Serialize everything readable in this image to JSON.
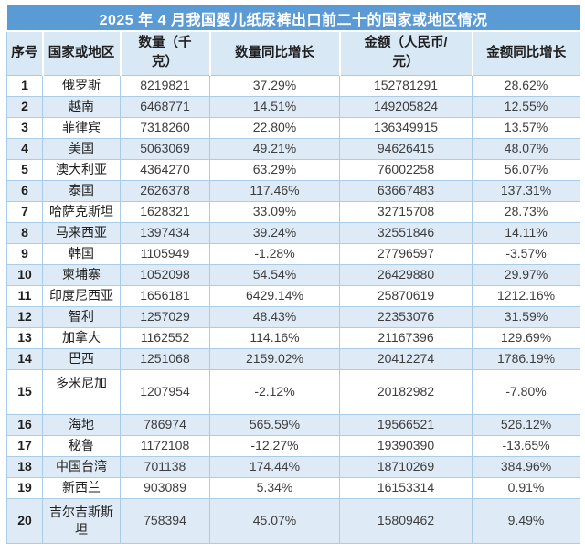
{
  "title": "2025 年 4 月我国婴儿纸尿裤出口前二十的国家或地区情况",
  "columns": {
    "index": "序号",
    "country": "国家或地区",
    "quantity": "数量（千\n克）",
    "quantity_yoy": "数量同比增长",
    "amount": "金额（人民币/\n元）",
    "amount_yoy": "金额同比增长"
  },
  "colors": {
    "title_bg": "#5B9BD5",
    "header_bg": "#D9E8F5",
    "band_bg": "#DEEBF6",
    "border_c": "#A9CCE9",
    "title_text": "#FFFFFF"
  },
  "rows": [
    {
      "index": "1",
      "country": "俄罗斯",
      "quantity": "8219821",
      "quantity_yoy": "37.29%",
      "amount": "152781291",
      "amount_yoy": "28.62%"
    },
    {
      "index": "2",
      "country": "越南",
      "quantity": "6468771",
      "quantity_yoy": "14.51%",
      "amount": "149205824",
      "amount_yoy": "12.55%"
    },
    {
      "index": "3",
      "country": "菲律宾",
      "quantity": "7318260",
      "quantity_yoy": "22.80%",
      "amount": "136349915",
      "amount_yoy": "13.57%"
    },
    {
      "index": "4",
      "country": "美国",
      "quantity": "5063069",
      "quantity_yoy": "49.21%",
      "amount": "94626415",
      "amount_yoy": "48.07%"
    },
    {
      "index": "5",
      "country": "澳大利亚",
      "quantity": "4364270",
      "quantity_yoy": "63.29%",
      "amount": "76002258",
      "amount_yoy": "56.07%"
    },
    {
      "index": "6",
      "country": "泰国",
      "quantity": "2626378",
      "quantity_yoy": "117.46%",
      "amount": "63667483",
      "amount_yoy": "137.31%"
    },
    {
      "index": "7",
      "country": "哈萨克斯坦",
      "quantity": "1628321",
      "quantity_yoy": "33.09%",
      "amount": "32715708",
      "amount_yoy": "28.73%"
    },
    {
      "index": "8",
      "country": "马来西亚",
      "quantity": "1397434",
      "quantity_yoy": "39.24%",
      "amount": "32551846",
      "amount_yoy": "14.11%"
    },
    {
      "index": "9",
      "country": "韩国",
      "quantity": "1105949",
      "quantity_yoy": "-1.28%",
      "amount": "27796597",
      "amount_yoy": "-3.57%"
    },
    {
      "index": "10",
      "country": "柬埔寨",
      "quantity": "1052098",
      "quantity_yoy": "54.54%",
      "amount": "26429880",
      "amount_yoy": "29.97%"
    },
    {
      "index": "11",
      "country": "印度尼西亚",
      "quantity": "1656181",
      "quantity_yoy": "6429.14%",
      "amount": "25870619",
      "amount_yoy": "1212.16%"
    },
    {
      "index": "12",
      "country": "智利",
      "quantity": "1257029",
      "quantity_yoy": "48.43%",
      "amount": "22353076",
      "amount_yoy": "31.59%"
    },
    {
      "index": "13",
      "country": "加拿大",
      "quantity": "1162552",
      "quantity_yoy": "114.16%",
      "amount": "21167396",
      "amount_yoy": "129.69%"
    },
    {
      "index": "14",
      "country": "巴西",
      "quantity": "1251068",
      "quantity_yoy": "2159.02%",
      "amount": "20412274",
      "amount_yoy": "1786.19%"
    },
    {
      "index": "15",
      "country": "多米尼加",
      "quantity": "1207954",
      "quantity_yoy": "-2.12%",
      "amount": "20182982",
      "amount_yoy": "-7.80%"
    },
    {
      "index": "16",
      "country": "海地",
      "quantity": "786974",
      "quantity_yoy": "565.59%",
      "amount": "19566521",
      "amount_yoy": "526.12%"
    },
    {
      "index": "17",
      "country": "秘鲁",
      "quantity": "1172108",
      "quantity_yoy": "-12.27%",
      "amount": "19390390",
      "amount_yoy": "-13.65%"
    },
    {
      "index": "18",
      "country": "中国台湾",
      "quantity": "701138",
      "quantity_yoy": "174.44%",
      "amount": "18710269",
      "amount_yoy": "384.96%"
    },
    {
      "index": "19",
      "country": "新西兰",
      "quantity": "903089",
      "quantity_yoy": "5.34%",
      "amount": "16153314",
      "amount_yoy": "0.91%"
    },
    {
      "index": "20",
      "country": "吉尔吉斯斯坦",
      "quantity": "758394",
      "quantity_yoy": "45.07%",
      "amount": "15809462",
      "amount_yoy": "9.49%"
    }
  ]
}
